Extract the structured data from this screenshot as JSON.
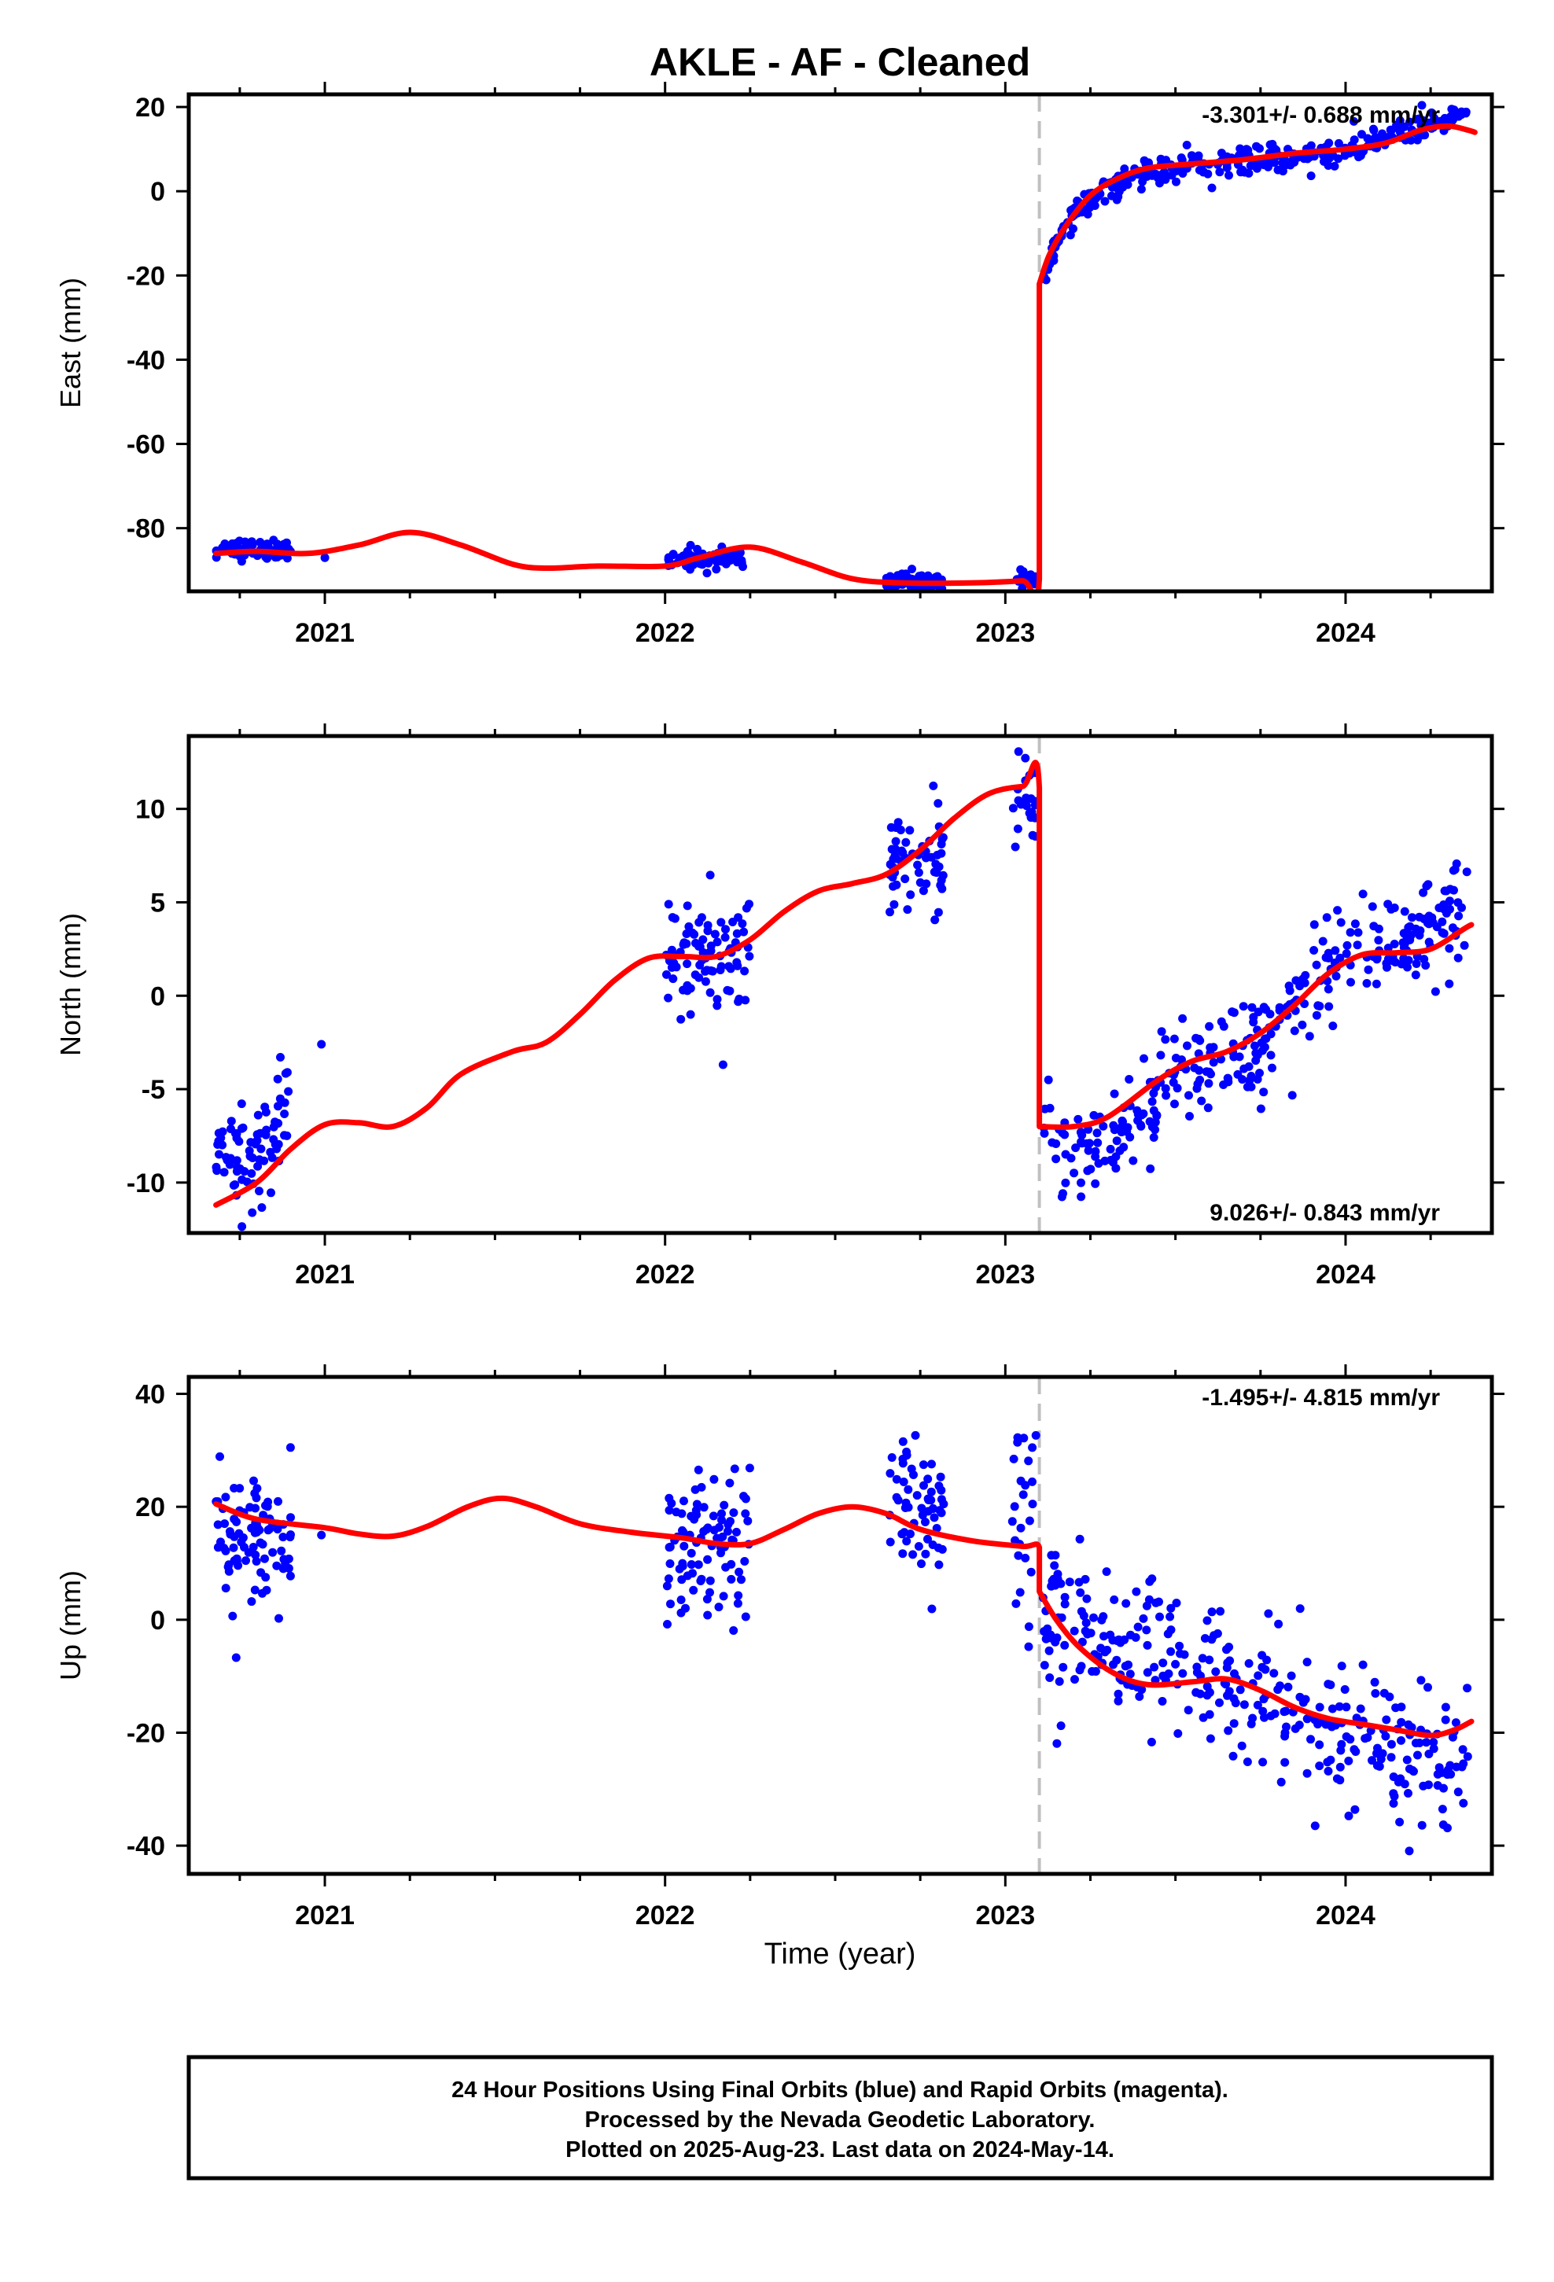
{
  "title": "AKLE  - AF - Cleaned",
  "xlabel": "Time (year)",
  "footer": {
    "line1": "24 Hour Positions Using Final Orbits (blue) and Rapid Orbits (magenta).",
    "line2": "Processed by the Nevada Geodetic Laboratory.",
    "line3": "Plotted on 2025-Aug-23. Last data on 2024-May-14."
  },
  "colors": {
    "data": "#0000ff",
    "model": "#ff0000",
    "event_line": "#c0c0c0",
    "frame": "#000000"
  },
  "chart_data": [
    {
      "type": "scatter",
      "ylabel": "East (mm)",
      "xlim": [
        2020.6,
        2024.43
      ],
      "ylim": [
        -95,
        23
      ],
      "yticks": [
        20,
        0,
        -20,
        -40,
        -60,
        -80
      ],
      "xticks": [
        2021,
        2022,
        2023,
        2024
      ],
      "grid": false,
      "event_year": 2023.1,
      "rate": "-3.301+/- 0.688 mm/yr",
      "rate_position": "top-right",
      "series": [
        {
          "role": "data",
          "segments": [
            {
              "x0": 2020.68,
              "x1": 2020.9,
              "knots": [
                [
                  2020.68,
                  -85
                ],
                [
                  2020.9,
                  -85
                ]
              ],
              "spread": 1.2,
              "n": 70
            },
            {
              "x0": 2021.0,
              "x1": 2021.0,
              "knots": [
                [
                  2021.0,
                  -87
                ]
              ],
              "spread": 0,
              "n": 1
            },
            {
              "x0": 2022.0,
              "x1": 2022.23,
              "knots": [
                [
                  2022.0,
                  -87.5
                ],
                [
                  2022.23,
                  -87.5
                ]
              ],
              "spread": 1.3,
              "n": 70
            },
            {
              "x0": 2022.65,
              "x1": 2022.82,
              "knots": [
                [
                  2022.65,
                  -92.5
                ],
                [
                  2022.82,
                  -92.5
                ]
              ],
              "spread": 1.1,
              "n": 55
            },
            {
              "x0": 2023.02,
              "x1": 2023.09,
              "knots": [
                [
                  2023.02,
                  -91.5
                ],
                [
                  2023.09,
                  -92
                ]
              ],
              "spread": 1.2,
              "n": 20
            },
            {
              "x0": 2023.11,
              "x1": 2024.36,
              "knots": [
                [
                  2023.11,
                  -21
                ],
                [
                  2023.15,
                  -12
                ],
                [
                  2023.22,
                  -4
                ],
                [
                  2023.3,
                  1
                ],
                [
                  2023.4,
                  4
                ],
                [
                  2023.5,
                  5.5
                ],
                [
                  2023.65,
                  6.5
                ],
                [
                  2023.8,
                  8
                ],
                [
                  2024.0,
                  10
                ],
                [
                  2024.1,
                  12
                ],
                [
                  2024.2,
                  15
                ],
                [
                  2024.36,
                  19
                ]
              ],
              "spread": 1.6,
              "n": 320
            }
          ]
        },
        {
          "role": "model",
          "points": [
            [
              2020.68,
              -86
            ],
            [
              2020.8,
              -85.5
            ],
            [
              2020.95,
              -86
            ],
            [
              2021.1,
              -84
            ],
            [
              2021.25,
              -81
            ],
            [
              2021.4,
              -84
            ],
            [
              2021.55,
              -88.5
            ],
            [
              2021.65,
              -89.5
            ],
            [
              2021.8,
              -89
            ],
            [
              2022.0,
              -89
            ],
            [
              2022.1,
              -87
            ],
            [
              2022.25,
              -84.5
            ],
            [
              2022.4,
              -88
            ],
            [
              2022.55,
              -92
            ],
            [
              2022.7,
              -93
            ],
            [
              2022.9,
              -93
            ],
            [
              2023.05,
              -92.5
            ],
            [
              2023.1,
              -92
            ],
            [
              2023.1,
              -22
            ],
            [
              2023.13,
              -15
            ],
            [
              2023.18,
              -8
            ],
            [
              2023.25,
              -1
            ],
            [
              2023.33,
              3
            ],
            [
              2023.42,
              5.5
            ],
            [
              2023.55,
              6.5
            ],
            [
              2023.7,
              7.5
            ],
            [
              2023.85,
              9
            ],
            [
              2024.0,
              10
            ],
            [
              2024.12,
              11.5
            ],
            [
              2024.22,
              14.5
            ],
            [
              2024.3,
              15.5
            ],
            [
              2024.36,
              14.5
            ],
            [
              2024.38,
              14
            ]
          ]
        }
      ]
    },
    {
      "type": "scatter",
      "ylabel": "North (mm)",
      "xlim": [
        2020.6,
        2024.43
      ],
      "ylim": [
        -12.7,
        13.9
      ],
      "yticks": [
        10,
        5,
        0,
        -5,
        -10
      ],
      "xticks": [
        2021,
        2022,
        2023,
        2024
      ],
      "grid": false,
      "event_year": 2023.1,
      "rate": "9.026+/- 0.843 mm/yr",
      "rate_position": "bottom-right",
      "series": [
        {
          "role": "data",
          "segments": [
            {
              "x0": 2020.68,
              "x1": 2020.9,
              "knots": [
                [
                  2020.68,
                  -8
                ],
                [
                  2020.75,
                  -9
                ],
                [
                  2020.82,
                  -8.5
                ],
                [
                  2020.9,
                  -6
                ]
              ],
              "spread": 1.5,
              "n": 80
            },
            {
              "x0": 2020.99,
              "x1": 2020.99,
              "knots": [
                [
                  2020.99,
                  -2.6
                ]
              ],
              "spread": 0,
              "n": 1
            },
            {
              "x0": 2022.0,
              "x1": 2022.25,
              "knots": [
                [
                  2022.0,
                  2
                ],
                [
                  2022.25,
                  2.5
                ]
              ],
              "spread": 1.5,
              "n": 90
            },
            {
              "x0": 2022.66,
              "x1": 2022.82,
              "knots": [
                [
                  2022.66,
                  7
                ],
                [
                  2022.82,
                  7.5
                ]
              ],
              "spread": 1.5,
              "n": 60
            },
            {
              "x0": 2023.02,
              "x1": 2023.09,
              "knots": [
                [
                  2023.02,
                  10.5
                ],
                [
                  2023.09,
                  10
                ]
              ],
              "spread": 1.3,
              "n": 25
            },
            {
              "x0": 2023.11,
              "x1": 2024.36,
              "knots": [
                [
                  2023.11,
                  -7
                ],
                [
                  2023.2,
                  -8.5
                ],
                [
                  2023.3,
                  -8
                ],
                [
                  2023.45,
                  -5
                ],
                [
                  2023.6,
                  -3.5
                ],
                [
                  2023.75,
                  -2.5
                ],
                [
                  2023.9,
                  0
                ],
                [
                  2024.0,
                  2.5
                ],
                [
                  2024.15,
                  3
                ],
                [
                  2024.25,
                  4
                ],
                [
                  2024.36,
                  4.5
                ]
              ],
              "spread": 1.3,
              "n": 330
            }
          ]
        },
        {
          "role": "model",
          "points": [
            [
              2020.68,
              -11.2
            ],
            [
              2020.8,
              -10
            ],
            [
              2020.9,
              -8.2
            ],
            [
              2021.0,
              -6.9
            ],
            [
              2021.1,
              -6.8
            ],
            [
              2021.2,
              -7.0
            ],
            [
              2021.3,
              -6.0
            ],
            [
              2021.4,
              -4.2
            ],
            [
              2021.55,
              -3.0
            ],
            [
              2021.65,
              -2.5
            ],
            [
              2021.75,
              -1.0
            ],
            [
              2021.85,
              0.8
            ],
            [
              2021.95,
              2.0
            ],
            [
              2022.05,
              2.1
            ],
            [
              2022.15,
              2.1
            ],
            [
              2022.25,
              3.0
            ],
            [
              2022.35,
              4.5
            ],
            [
              2022.45,
              5.6
            ],
            [
              2022.55,
              6.0
            ],
            [
              2022.65,
              6.5
            ],
            [
              2022.75,
              7.8
            ],
            [
              2022.85,
              9.5
            ],
            [
              2022.95,
              10.8
            ],
            [
              2023.05,
              11.2
            ],
            [
              2023.1,
              11.1
            ],
            [
              2023.1,
              -7.0
            ],
            [
              2023.2,
              -7.0
            ],
            [
              2023.3,
              -6.5
            ],
            [
              2023.45,
              -4.5
            ],
            [
              2023.55,
              -3.5
            ],
            [
              2023.65,
              -3.0
            ],
            [
              2023.75,
              -2.0
            ],
            [
              2023.85,
              -0.5
            ],
            [
              2023.95,
              1.2
            ],
            [
              2024.05,
              2.2
            ],
            [
              2024.15,
              2.3
            ],
            [
              2024.25,
              2.5
            ],
            [
              2024.35,
              3.6
            ],
            [
              2024.37,
              3.8
            ]
          ]
        }
      ]
    },
    {
      "type": "scatter",
      "ylabel": "Up (mm)",
      "xlim": [
        2020.6,
        2024.43
      ],
      "ylim": [
        -45,
        43
      ],
      "yticks": [
        40,
        20,
        0,
        -20,
        -40
      ],
      "xticks": [
        2021,
        2022,
        2023,
        2024
      ],
      "grid": false,
      "event_year": 2023.1,
      "rate": "-1.495+/- 4.815 mm/yr",
      "rate_position": "top-right",
      "series": [
        {
          "role": "data",
          "segments": [
            {
              "x0": 2020.68,
              "x1": 2020.9,
              "knots": [
                [
                  2020.68,
                  14
                ],
                [
                  2020.9,
                  15
                ]
              ],
              "spread": 6.5,
              "n": 90
            },
            {
              "x0": 2020.99,
              "x1": 2020.99,
              "knots": [
                [
                  2020.99,
                  15
                ]
              ],
              "spread": 0,
              "n": 1
            },
            {
              "x0": 2022.0,
              "x1": 2022.25,
              "knots": [
                [
                  2022.0,
                  13
                ],
                [
                  2022.25,
                  14
                ]
              ],
              "spread": 6,
              "n": 95
            },
            {
              "x0": 2022.66,
              "x1": 2022.82,
              "knots": [
                [
                  2022.66,
                  19
                ],
                [
                  2022.82,
                  17
                ]
              ],
              "spread": 6.5,
              "n": 60
            },
            {
              "x0": 2023.02,
              "x1": 2023.09,
              "knots": [
                [
                  2023.02,
                  16
                ],
                [
                  2023.09,
                  20
                ]
              ],
              "spread": 9,
              "n": 25
            },
            {
              "x0": 2023.11,
              "x1": 2024.36,
              "knots": [
                [
                  2023.11,
                  0
                ],
                [
                  2023.25,
                  -1
                ],
                [
                  2023.4,
                  -5
                ],
                [
                  2023.6,
                  -9
                ],
                [
                  2023.8,
                  -13
                ],
                [
                  2023.95,
                  -19
                ],
                [
                  2024.05,
                  -20
                ],
                [
                  2024.2,
                  -28
                ],
                [
                  2024.36,
                  -25
                ]
              ],
              "spread": 6.5,
              "n": 330
            }
          ]
        },
        {
          "role": "model",
          "points": [
            [
              2020.68,
              20.5
            ],
            [
              2020.8,
              17.8
            ],
            [
              2021.0,
              16.3
            ],
            [
              2021.1,
              15.2
            ],
            [
              2021.2,
              14.8
            ],
            [
              2021.3,
              16.5
            ],
            [
              2021.42,
              20
            ],
            [
              2021.52,
              21.5
            ],
            [
              2021.62,
              20
            ],
            [
              2021.75,
              17
            ],
            [
              2021.9,
              15.5
            ],
            [
              2022.05,
              14.5
            ],
            [
              2022.15,
              13.5
            ],
            [
              2022.25,
              13.5
            ],
            [
              2022.35,
              16
            ],
            [
              2022.45,
              18.8
            ],
            [
              2022.55,
              20
            ],
            [
              2022.65,
              18.8
            ],
            [
              2022.75,
              16
            ],
            [
              2022.9,
              14
            ],
            [
              2023.05,
              13
            ],
            [
              2023.1,
              12.8
            ],
            [
              2023.1,
              5
            ],
            [
              2023.15,
              0
            ],
            [
              2023.22,
              -5
            ],
            [
              2023.32,
              -9.5
            ],
            [
              2023.42,
              -11.5
            ],
            [
              2023.55,
              -11
            ],
            [
              2023.65,
              -10.5
            ],
            [
              2023.75,
              -12.5
            ],
            [
              2023.85,
              -15.5
            ],
            [
              2023.95,
              -17.5
            ],
            [
              2024.05,
              -18.5
            ],
            [
              2024.15,
              -19.5
            ],
            [
              2024.25,
              -20.5
            ],
            [
              2024.32,
              -19.5
            ],
            [
              2024.37,
              -18
            ]
          ]
        }
      ]
    }
  ]
}
